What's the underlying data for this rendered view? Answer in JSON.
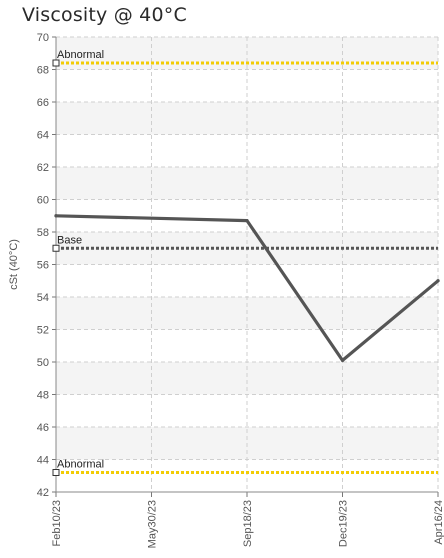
{
  "chart_data": {
    "type": "line",
    "title": "Viscosity @ 40°C",
    "ylabel": "cSt (40°C)",
    "xlabel": "",
    "ylim": [
      42,
      70
    ],
    "y_ticks": [
      42,
      44,
      46,
      48,
      50,
      52,
      54,
      56,
      58,
      60,
      62,
      64,
      66,
      68,
      70
    ],
    "categories": [
      "Feb10/23",
      "May30/23",
      "Sep18/23",
      "Dec19/23",
      "Apr16/24"
    ],
    "series": [
      {
        "values": [
          59.0,
          null,
          58.7,
          50.1,
          55.0
        ],
        "color": "#555555"
      }
    ],
    "reference_lines": [
      {
        "label": "Abnormal",
        "value": 68.4,
        "color": "#f2cb05",
        "style": "dotted"
      },
      {
        "label": "Base",
        "value": 57.0,
        "color": "#555555",
        "style": "dotted"
      },
      {
        "label": "Abnormal",
        "value": 43.2,
        "color": "#f2cb05",
        "style": "dotted"
      }
    ],
    "grid": true,
    "alternating_bands": true
  }
}
